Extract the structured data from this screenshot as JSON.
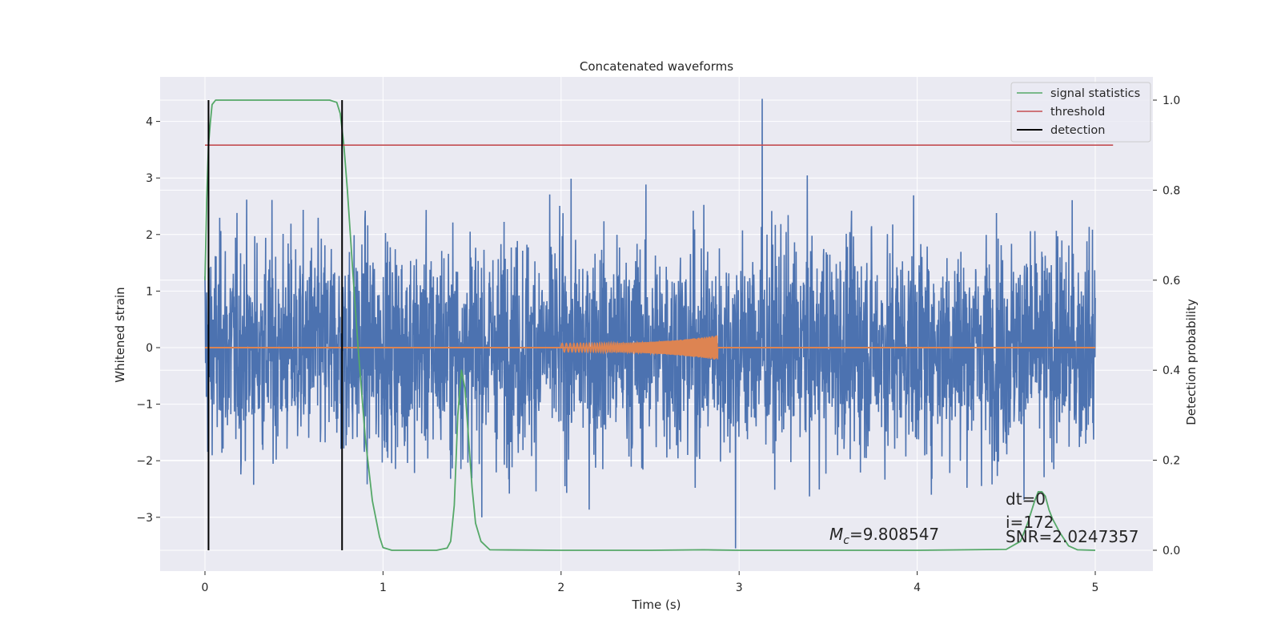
{
  "chart_data": {
    "type": "line",
    "title": "Concatenated waveforms",
    "xlabel": "Time (s)",
    "ylabel": "Whitened strain",
    "ylabel_right": "Detection probability",
    "xlim": [
      -0.25,
      5.35
    ],
    "ylim": [
      -3.9,
      4.7
    ],
    "ylim_right": [
      -0.048,
      1.048
    ],
    "xticks": [
      0,
      1,
      2,
      3,
      4,
      5
    ],
    "xtick_labels": [
      "0",
      "1",
      "2",
      "3",
      "4",
      "5"
    ],
    "yticks": [
      -3,
      -2,
      -1,
      0,
      1,
      2,
      3,
      4
    ],
    "ytick_labels": [
      "−3",
      "−2",
      "−1",
      "0",
      "1",
      "2",
      "3",
      "4"
    ],
    "yticks_right": [
      0.0,
      0.2,
      0.4,
      0.6,
      0.8,
      1.0
    ],
    "ytick_labels_right": [
      "0.0",
      "0.2",
      "0.4",
      "0.6",
      "0.8",
      "1.0"
    ],
    "grid": true,
    "legend_position": "top-right",
    "legend": [
      "signal statistics",
      "threshold",
      "detection"
    ],
    "colors": {
      "background": "#eaeaf2",
      "grid": "#ffffff",
      "strain": "#4c72b0",
      "template": "#dd8452",
      "signal_statistics": "#55a868",
      "threshold": "#c44e52",
      "detection": "#000000"
    },
    "series": [
      {
        "name": "signal statistics",
        "axis": "right",
        "x": [
          0.0,
          0.01,
          0.02,
          0.03,
          0.04,
          0.06,
          0.1,
          0.2,
          0.4,
          0.6,
          0.7,
          0.74,
          0.76,
          0.78,
          0.8,
          0.83,
          0.86,
          0.9,
          0.94,
          0.98,
          1.0,
          1.05,
          1.2,
          1.3,
          1.36,
          1.38,
          1.4,
          1.42,
          1.44,
          1.46,
          1.48,
          1.5,
          1.52,
          1.55,
          1.6,
          2.0,
          2.5,
          2.8,
          3.0,
          3.5,
          4.0,
          4.5,
          4.58,
          4.62,
          4.66,
          4.68,
          4.7,
          4.72,
          4.74,
          4.76,
          4.8,
          4.85,
          4.9,
          5.0
        ],
        "y": [
          0.6,
          0.78,
          0.9,
          0.95,
          0.99,
          1.0,
          1.0,
          1.0,
          1.0,
          1.0,
          1.0,
          0.995,
          0.97,
          0.9,
          0.8,
          0.62,
          0.45,
          0.25,
          0.11,
          0.03,
          0.006,
          0.0,
          0.0,
          0.0,
          0.005,
          0.02,
          0.1,
          0.3,
          0.4,
          0.36,
          0.25,
          0.14,
          0.06,
          0.02,
          0.001,
          0.0,
          0.0,
          0.001,
          0.0,
          0.0,
          0.0,
          0.002,
          0.02,
          0.06,
          0.11,
          0.13,
          0.13,
          0.12,
          0.09,
          0.07,
          0.04,
          0.01,
          0.001,
          0.0
        ]
      },
      {
        "name": "threshold",
        "axis": "right",
        "x": [
          0.0,
          5.1
        ],
        "y": [
          0.9,
          0.9
        ]
      },
      {
        "name": "detection",
        "axis": "right",
        "vlines": [
          0.02,
          0.77
        ],
        "ymin": 0.0,
        "ymax": 1.0
      },
      {
        "axis": "left",
        "kind": "whitened_strain_noise",
        "x_range": [
          0,
          5
        ],
        "amplitude_typical": [
          -2.5,
          2.5
        ],
        "max": 4.4,
        "max_at": 3.13,
        "min": -3.55,
        "min_at": 2.98
      },
      {
        "axis": "left",
        "kind": "injected_template_chirp",
        "x_range": [
          2.0,
          2.88
        ],
        "peak_amplitude": 0.22
      }
    ],
    "annotations": [
      {
        "id": "mc",
        "symbol": "M",
        "subscript": "c",
        "text": "=9.808547"
      },
      {
        "id": "dt",
        "text": "dt=0"
      },
      {
        "id": "i",
        "text": "i=172"
      },
      {
        "id": "snr",
        "text": "SNR=2.0247357"
      }
    ]
  }
}
